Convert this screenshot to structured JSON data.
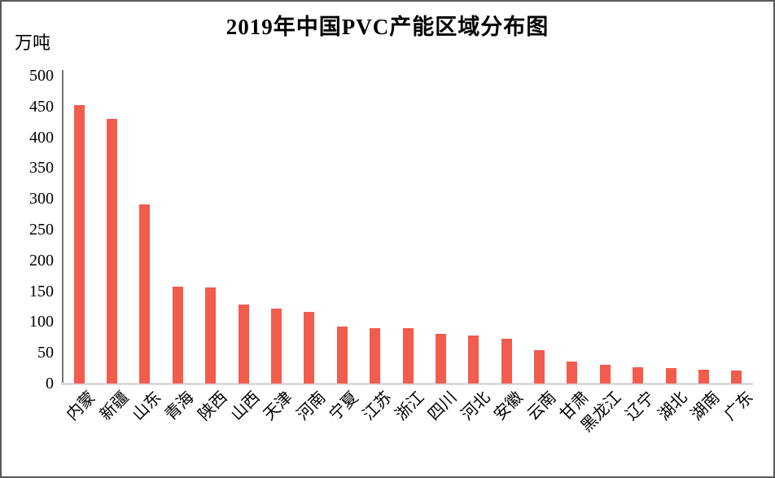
{
  "frame": {
    "background": "#ffffff",
    "border_color": "#595959"
  },
  "chart_data": {
    "type": "bar",
    "title": "2019年中国PVC产能区域分布图",
    "unit_label": "万吨",
    "xlabel": "",
    "ylabel": "万吨",
    "categories": [
      "内蒙",
      "新疆",
      "山东",
      "青海",
      "陕西",
      "山西",
      "天津",
      "河南",
      "宁夏",
      "江苏",
      "浙江",
      "四川",
      "河北",
      "安徽",
      "云南",
      "甘肃",
      "黑龙江",
      "辽宁",
      "湖北",
      "湖南",
      "广东"
    ],
    "values": [
      453,
      430,
      291,
      157,
      156,
      128,
      122,
      117,
      92,
      90,
      90,
      81,
      78,
      73,
      54,
      36,
      30,
      27,
      25,
      22,
      21
    ],
    "ylim": [
      0,
      500
    ],
    "ytick_step": 50,
    "yticks": [
      0,
      50,
      100,
      150,
      200,
      250,
      300,
      350,
      400,
      450,
      500
    ],
    "grid": false,
    "legend": false,
    "xlabel_rotation_deg": -45,
    "bar_color": "#F25C4D",
    "y_axis_color": "#737373",
    "baseline_color": "#dbdbdb",
    "text_color": "#000000"
  }
}
